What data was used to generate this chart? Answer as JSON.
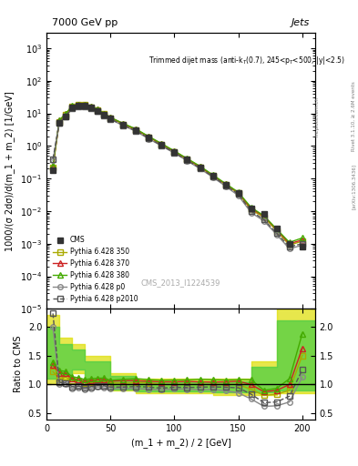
{
  "title_main": "7000 GeV pp",
  "title_right": "Jets",
  "annotation": "Trimmed dijet mass (anti-k_{T}(0.7), 245<p_{T}<500, |y|<2.5)",
  "watermark": "CMS_2013_I1224539",
  "rivet_label": "Rivet 3.1.10, ≥ 2.6M events",
  "arxiv_label": "[arXiv:1306.3436]",
  "xlabel": "(m_1 + m_2) / 2 [GeV]",
  "ylabel_main": "1000/(σ 2dσ)/d(m_1 + m_2) [1/GeV]",
  "ylabel_ratio": "Ratio to CMS",
  "xlim": [
    0,
    210
  ],
  "ylim_main": [
    1e-05,
    3000.0
  ],
  "ylim_ratio": [
    0.4,
    2.3
  ],
  "x_ticks": [
    0,
    50,
    100,
    150,
    200
  ],
  "cms_x": [
    5,
    10,
    15,
    20,
    25,
    30,
    35,
    40,
    45,
    50,
    60,
    70,
    80,
    90,
    100,
    110,
    120,
    130,
    140,
    150,
    160,
    170,
    180,
    190,
    200
  ],
  "cms_y": [
    0.18,
    5.0,
    8.0,
    15.0,
    17.0,
    17.5,
    15.0,
    12.0,
    9.0,
    7.0,
    4.5,
    3.0,
    1.8,
    1.1,
    0.65,
    0.38,
    0.22,
    0.12,
    0.065,
    0.035,
    0.012,
    0.008,
    0.003,
    0.001,
    0.0008
  ],
  "cms_yerr": [
    0.03,
    0.4,
    0.5,
    0.8,
    0.9,
    0.9,
    0.8,
    0.6,
    0.45,
    0.35,
    0.22,
    0.15,
    0.09,
    0.055,
    0.033,
    0.019,
    0.011,
    0.006,
    0.0033,
    0.0018,
    0.0007,
    0.0005,
    0.0002,
    0.0001,
    0.0001
  ],
  "p350_x": [
    5,
    10,
    15,
    20,
    25,
    30,
    35,
    40,
    45,
    50,
    60,
    70,
    80,
    90,
    100,
    110,
    120,
    130,
    140,
    150,
    160,
    170,
    180,
    190,
    200
  ],
  "p350_y": [
    0.22,
    5.5,
    9.0,
    16.0,
    18.0,
    18.0,
    15.5,
    12.5,
    9.5,
    7.2,
    4.6,
    3.1,
    1.85,
    1.1,
    0.65,
    0.38,
    0.22,
    0.12,
    0.065,
    0.035,
    0.011,
    0.0065,
    0.0025,
    0.0009,
    0.0012
  ],
  "p370_x": [
    5,
    10,
    15,
    20,
    25,
    30,
    35,
    40,
    45,
    50,
    60,
    70,
    80,
    90,
    100,
    110,
    120,
    130,
    140,
    150,
    160,
    170,
    180,
    190,
    200
  ],
  "p370_y": [
    0.24,
    6.0,
    9.5,
    16.5,
    18.5,
    18.5,
    16.0,
    13.0,
    9.8,
    7.4,
    4.8,
    3.2,
    1.9,
    1.15,
    0.68,
    0.4,
    0.23,
    0.125,
    0.068,
    0.037,
    0.012,
    0.007,
    0.0027,
    0.001,
    0.0013
  ],
  "p380_x": [
    5,
    10,
    15,
    20,
    25,
    30,
    35,
    40,
    45,
    50,
    60,
    70,
    80,
    90,
    100,
    110,
    120,
    130,
    140,
    150,
    160,
    170,
    180,
    190,
    200
  ],
  "p380_y": [
    0.25,
    6.2,
    9.8,
    17.0,
    19.0,
    19.0,
    16.5,
    13.3,
    10.0,
    7.5,
    4.9,
    3.3,
    1.95,
    1.18,
    0.7,
    0.41,
    0.24,
    0.13,
    0.07,
    0.038,
    0.013,
    0.0072,
    0.0028,
    0.0011,
    0.0015
  ],
  "p0_x": [
    5,
    10,
    15,
    20,
    25,
    30,
    35,
    40,
    45,
    50,
    60,
    70,
    80,
    90,
    100,
    110,
    120,
    130,
    140,
    150,
    160,
    170,
    180,
    190,
    200
  ],
  "p0_y": [
    0.36,
    5.0,
    8.0,
    14.0,
    16.0,
    16.0,
    14.0,
    11.5,
    8.5,
    6.5,
    4.2,
    2.8,
    1.65,
    1.0,
    0.6,
    0.35,
    0.2,
    0.11,
    0.058,
    0.03,
    0.009,
    0.005,
    0.0019,
    0.0007,
    0.0009
  ],
  "p2010_x": [
    5,
    10,
    15,
    20,
    25,
    30,
    35,
    40,
    45,
    50,
    60,
    70,
    80,
    90,
    100,
    110,
    120,
    130,
    140,
    150,
    160,
    170,
    180,
    190,
    200
  ],
  "p2010_y": [
    0.4,
    5.2,
    8.2,
    14.5,
    16.5,
    16.5,
    14.5,
    11.8,
    8.8,
    6.7,
    4.3,
    2.9,
    1.72,
    1.03,
    0.62,
    0.36,
    0.21,
    0.115,
    0.062,
    0.033,
    0.01,
    0.0055,
    0.0021,
    0.0008,
    0.001
  ],
  "bg_yellow": {
    "x": [
      0,
      10,
      20,
      30,
      50,
      60,
      80,
      100,
      120,
      140,
      160,
      180,
      200
    ],
    "y_lo": [
      1.0,
      1.1,
      1.2,
      1.0,
      0.9,
      0.85,
      0.85,
      0.85,
      0.85,
      0.8,
      0.85,
      0.9,
      0.9
    ],
    "y_hi": [
      2.2,
      1.8,
      1.7,
      1.5,
      1.2,
      1.15,
      1.1,
      1.1,
      1.1,
      1.15,
      1.4,
      2.3,
      2.3
    ]
  },
  "bg_green": {
    "x": [
      0,
      10,
      20,
      30,
      50,
      60,
      80,
      100,
      120,
      140,
      160,
      180,
      200
    ],
    "y_lo": [
      1.1,
      1.15,
      1.25,
      1.05,
      0.92,
      0.88,
      0.88,
      0.88,
      0.88,
      0.85,
      0.9,
      1.0,
      1.0
    ],
    "y_hi": [
      2.0,
      1.7,
      1.6,
      1.4,
      1.15,
      1.1,
      1.05,
      1.05,
      1.05,
      1.1,
      1.3,
      2.1,
      2.1
    ]
  },
  "colors": {
    "cms": "#333333",
    "p350": "#aaaa00",
    "p370": "#cc2222",
    "p380": "#44aa00",
    "p0": "#888888",
    "p2010": "#555555"
  }
}
